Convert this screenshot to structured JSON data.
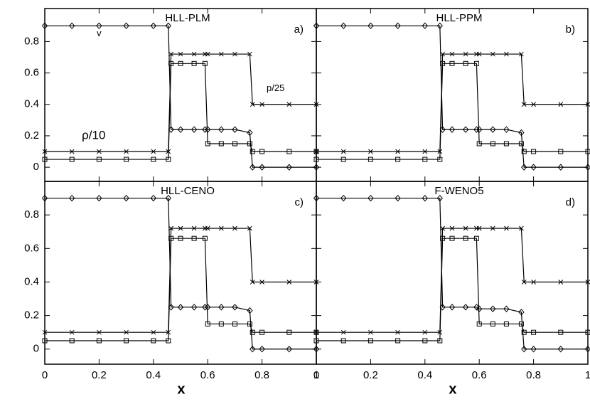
{
  "chart_data": [
    {
      "type": "line",
      "title": "HLL-PLM",
      "panel_label": "a)",
      "annotations": [
        "v",
        "ρ/10",
        "p/25"
      ],
      "x": [
        0,
        0.1,
        0.2,
        0.3,
        0.4,
        0.455,
        0.465,
        0.5,
        0.55,
        0.59,
        0.6,
        0.65,
        0.7,
        0.755,
        0.765,
        0.8,
        0.9,
        1
      ],
      "series": [
        {
          "color": "#000000",
          "marker": "diamond",
          "values": [
            0.9,
            0.9,
            0.9,
            0.9,
            0.9,
            0.9,
            0.24,
            0.24,
            0.24,
            0.24,
            0.24,
            0.24,
            0.24,
            0.22,
            0.0,
            0.0,
            0.0,
            0.0
          ]
        },
        {
          "color": "#000000",
          "marker": "square",
          "values": [
            0.05,
            0.05,
            0.05,
            0.05,
            0.05,
            0.05,
            0.66,
            0.66,
            0.66,
            0.66,
            0.15,
            0.15,
            0.15,
            0.15,
            0.1,
            0.1,
            0.1,
            0.1
          ]
        },
        {
          "color": "#000000",
          "marker": "cross",
          "values": [
            0.1,
            0.1,
            0.1,
            0.1,
            0.1,
            0.1,
            0.72,
            0.72,
            0.72,
            0.72,
            0.72,
            0.72,
            0.72,
            0.72,
            0.4,
            0.4,
            0.4,
            0.4
          ]
        }
      ],
      "xlim": [
        0,
        1
      ],
      "ylim": [
        -0.09,
        1.01
      ],
      "xticks": [
        0,
        0.2,
        0.4,
        0.6,
        0.8,
        1
      ],
      "yticks": [
        0,
        0.2,
        0.4,
        0.6,
        0.8
      ],
      "show_xtick_labels": false,
      "show_ytick_labels": true
    },
    {
      "type": "line",
      "title": "HLL-PPM",
      "panel_label": "b)",
      "x": [
        0,
        0.1,
        0.2,
        0.3,
        0.4,
        0.455,
        0.465,
        0.5,
        0.55,
        0.59,
        0.6,
        0.65,
        0.7,
        0.755,
        0.765,
        0.8,
        0.9,
        1
      ],
      "series": [
        {
          "color": "#000000",
          "marker": "diamond",
          "values": [
            0.9,
            0.9,
            0.9,
            0.9,
            0.9,
            0.9,
            0.24,
            0.24,
            0.24,
            0.24,
            0.24,
            0.24,
            0.24,
            0.22,
            0.0,
            0.0,
            0.0,
            0.0
          ]
        },
        {
          "color": "#000000",
          "marker": "square",
          "values": [
            0.05,
            0.05,
            0.05,
            0.05,
            0.05,
            0.05,
            0.66,
            0.66,
            0.66,
            0.66,
            0.15,
            0.15,
            0.15,
            0.15,
            0.1,
            0.1,
            0.1,
            0.1
          ]
        },
        {
          "color": "#000000",
          "marker": "cross",
          "values": [
            0.1,
            0.1,
            0.1,
            0.1,
            0.1,
            0.1,
            0.72,
            0.72,
            0.72,
            0.72,
            0.72,
            0.72,
            0.72,
            0.72,
            0.4,
            0.4,
            0.4,
            0.4
          ]
        }
      ],
      "xlim": [
        0,
        1
      ],
      "ylim": [
        -0.09,
        1.01
      ],
      "xticks": [
        0,
        0.2,
        0.4,
        0.6,
        0.8,
        1
      ],
      "yticks": [
        0,
        0.2,
        0.4,
        0.6,
        0.8
      ],
      "show_xtick_labels": false,
      "show_ytick_labels": false
    },
    {
      "type": "line",
      "title": "HLL-CENO",
      "panel_label": "c)",
      "xlabel": "x",
      "x": [
        0,
        0.1,
        0.2,
        0.3,
        0.4,
        0.455,
        0.465,
        0.5,
        0.55,
        0.59,
        0.6,
        0.65,
        0.7,
        0.755,
        0.765,
        0.8,
        0.9,
        1
      ],
      "series": [
        {
          "color": "#000000",
          "marker": "diamond",
          "values": [
            0.9,
            0.9,
            0.9,
            0.9,
            0.9,
            0.9,
            0.25,
            0.25,
            0.25,
            0.25,
            0.25,
            0.25,
            0.25,
            0.23,
            0.0,
            0.0,
            0.0,
            0.0
          ]
        },
        {
          "color": "#000000",
          "marker": "square",
          "values": [
            0.05,
            0.05,
            0.05,
            0.05,
            0.05,
            0.05,
            0.66,
            0.66,
            0.66,
            0.66,
            0.15,
            0.15,
            0.15,
            0.15,
            0.1,
            0.1,
            0.1,
            0.1
          ]
        },
        {
          "color": "#000000",
          "marker": "cross",
          "values": [
            0.1,
            0.1,
            0.1,
            0.1,
            0.1,
            0.1,
            0.72,
            0.72,
            0.72,
            0.72,
            0.72,
            0.72,
            0.72,
            0.72,
            0.4,
            0.4,
            0.4,
            0.4
          ]
        }
      ],
      "xlim": [
        0,
        1
      ],
      "ylim": [
        -0.09,
        1.0
      ],
      "xticks": [
        0,
        0.2,
        0.4,
        0.6,
        0.8,
        1
      ],
      "yticks": [
        0,
        0.2,
        0.4,
        0.6,
        0.8
      ],
      "show_xtick_labels": true,
      "show_ytick_labels": true
    },
    {
      "type": "line",
      "title": "F-WENO5",
      "panel_label": "d)",
      "xlabel": "x",
      "x": [
        0,
        0.1,
        0.2,
        0.3,
        0.4,
        0.455,
        0.465,
        0.5,
        0.55,
        0.59,
        0.6,
        0.65,
        0.7,
        0.755,
        0.765,
        0.8,
        0.9,
        1
      ],
      "series": [
        {
          "color": "#000000",
          "marker": "diamond",
          "values": [
            0.9,
            0.9,
            0.9,
            0.9,
            0.9,
            0.9,
            0.25,
            0.25,
            0.25,
            0.25,
            0.24,
            0.24,
            0.24,
            0.22,
            0.0,
            0.0,
            0.0,
            0.0
          ]
        },
        {
          "color": "#000000",
          "marker": "square",
          "values": [
            0.05,
            0.05,
            0.05,
            0.05,
            0.05,
            0.05,
            0.66,
            0.66,
            0.66,
            0.66,
            0.15,
            0.15,
            0.15,
            0.15,
            0.1,
            0.1,
            0.1,
            0.1
          ]
        },
        {
          "color": "#000000",
          "marker": "cross",
          "values": [
            0.1,
            0.1,
            0.1,
            0.1,
            0.1,
            0.1,
            0.72,
            0.72,
            0.72,
            0.72,
            0.72,
            0.72,
            0.72,
            0.72,
            0.4,
            0.4,
            0.4,
            0.4
          ]
        }
      ],
      "xlim": [
        0,
        1
      ],
      "ylim": [
        -0.09,
        1.0
      ],
      "xticks": [
        0,
        0.2,
        0.4,
        0.6,
        0.8,
        1
      ],
      "yticks": [
        0,
        0.2,
        0.4,
        0.6,
        0.8
      ],
      "show_xtick_labels": true,
      "show_ytick_labels": false
    }
  ]
}
